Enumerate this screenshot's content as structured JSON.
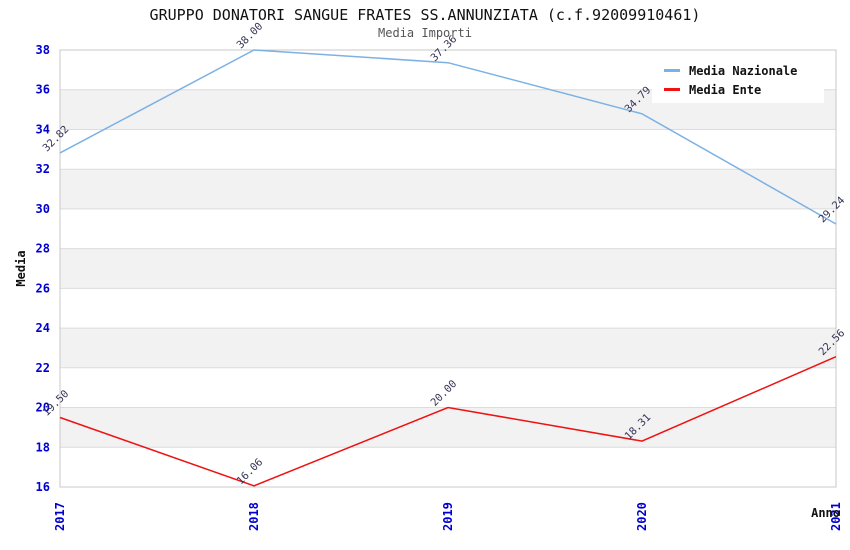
{
  "title": "GRUPPO DONATORI SANGUE FRATES SS.ANNUNZIATA (c.f.92009910461)",
  "subtitle": "Media Importi",
  "legend": {
    "items": [
      {
        "label": "Media Nazionale",
        "color": "#7CB1E4"
      },
      {
        "label": "Media Ente",
        "color": "#EE1212"
      }
    ]
  },
  "chart_data": {
    "type": "line",
    "title": "GRUPPO DONATORI SANGUE FRATES SS.ANNUNZIATA (c.f.92009910461)",
    "subtitle": "Media Importi",
    "xlabel": "Anno",
    "ylabel": "Media",
    "x": [
      "2017",
      "2018",
      "2019",
      "2020",
      "2021"
    ],
    "series": [
      {
        "name": "Media Nazionale",
        "color": "#7CB1E4",
        "values": [
          32.82,
          38.0,
          37.36,
          34.79,
          29.24
        ]
      },
      {
        "name": "Media Ente",
        "color": "#EE1212",
        "values": [
          19.5,
          16.06,
          20.0,
          18.31,
          22.56
        ]
      }
    ],
    "ylim": [
      16,
      38
    ],
    "ytick_step": 2,
    "grid": true,
    "legend_position": "top-right",
    "band_colors": [
      "#ffffff",
      "#f2f2f2"
    ],
    "grid_color": "#dcdcdc",
    "border_color": "#c8c8c8",
    "tick_color": "#0000D0",
    "data_label_color": "#333355"
  }
}
